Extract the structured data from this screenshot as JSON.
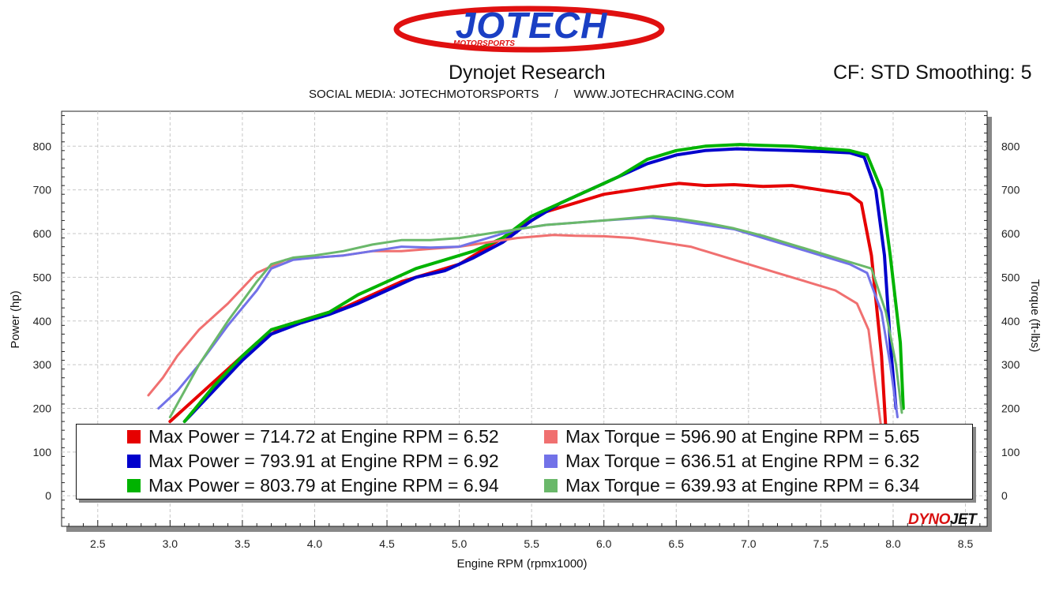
{
  "header": {
    "logo_text": "JOTECH",
    "logo_subtext": "MOTORSPORTS",
    "title": "Dynojet Research",
    "cf_text": "CF: STD Smoothing: 5",
    "social_label": "SOCIAL MEDIA: JOTECHMOTORSPORTS",
    "separator": "/",
    "website": "WWW.JOTECHRACING.COM"
  },
  "watermark": {
    "dyno": "DYNO",
    "jet": "JET"
  },
  "colors": {
    "power_red": "#e60000",
    "power_blue": "#0000cc",
    "power_green": "#00b300",
    "torque_red": "#f07070",
    "torque_blue": "#7272e8",
    "torque_green": "#6ab86a",
    "logo_red": "#e01010",
    "logo_blue": "#1a3fc4"
  },
  "chart_data": {
    "type": "line",
    "xlabel": "Engine RPM (rpmx1000)",
    "ylabel": "Power (hp)",
    "y2label": "Torque (ft-lbs)",
    "xlim": [
      2.25,
      8.65
    ],
    "ylim": [
      -70,
      880
    ],
    "x_ticks": [
      "2.5",
      "3.0",
      "3.5",
      "4.0",
      "4.5",
      "5.0",
      "5.5",
      "6.0",
      "6.5",
      "7.0",
      "7.5",
      "8.0",
      "8.5"
    ],
    "y_ticks": [
      "0",
      "100",
      "200",
      "300",
      "400",
      "500",
      "600",
      "700",
      "800"
    ],
    "y2_ticks": [
      "0",
      "100",
      "200",
      "300",
      "400",
      "500",
      "600",
      "700",
      "800"
    ],
    "grid": true,
    "legend_position": "bottom",
    "series": [
      {
        "color": "#e60000",
        "width": 4,
        "x": [
          3.0,
          3.2,
          3.4,
          3.6,
          3.8,
          4.0,
          4.2,
          4.4,
          4.6,
          4.8,
          5.0,
          5.2,
          5.4,
          5.6,
          5.8,
          6.0,
          6.2,
          6.4,
          6.52,
          6.7,
          6.9,
          7.1,
          7.3,
          7.5,
          7.7,
          7.78,
          7.85,
          7.92,
          7.95
        ],
        "values": [
          170,
          230,
          290,
          350,
          390,
          410,
          430,
          460,
          490,
          510,
          530,
          570,
          610,
          650,
          670,
          690,
          700,
          710,
          715,
          710,
          712,
          708,
          710,
          700,
          690,
          670,
          550,
          320,
          150
        ]
      },
      {
        "color": "#0000cc",
        "width": 4,
        "x": [
          3.1,
          3.3,
          3.5,
          3.7,
          3.9,
          4.1,
          4.3,
          4.5,
          4.7,
          4.9,
          5.1,
          5.3,
          5.5,
          5.7,
          5.9,
          6.1,
          6.3,
          6.5,
          6.7,
          6.92,
          7.1,
          7.3,
          7.5,
          7.7,
          7.8,
          7.88,
          7.94,
          7.98,
          8.02
        ],
        "values": [
          170,
          240,
          310,
          370,
          395,
          415,
          440,
          470,
          500,
          515,
          545,
          580,
          630,
          670,
          700,
          730,
          760,
          780,
          790,
          794,
          792,
          790,
          788,
          785,
          775,
          700,
          550,
          350,
          200
        ]
      },
      {
        "color": "#00b300",
        "width": 4,
        "x": [
          3.1,
          3.3,
          3.5,
          3.7,
          3.9,
          4.1,
          4.3,
          4.5,
          4.7,
          4.9,
          5.1,
          5.3,
          5.5,
          5.7,
          5.9,
          6.1,
          6.3,
          6.5,
          6.7,
          6.94,
          7.1,
          7.3,
          7.5,
          7.7,
          7.82,
          7.92,
          7.98,
          8.05,
          8.07
        ],
        "values": [
          170,
          250,
          320,
          380,
          400,
          420,
          460,
          490,
          520,
          540,
          560,
          590,
          640,
          670,
          700,
          730,
          770,
          790,
          800,
          804,
          802,
          800,
          795,
          790,
          780,
          700,
          550,
          350,
          200
        ]
      },
      {
        "color": "#f07070",
        "width": 3,
        "x": [
          2.85,
          2.95,
          3.05,
          3.2,
          3.4,
          3.6,
          3.8,
          4.0,
          4.2,
          4.4,
          4.6,
          4.8,
          5.0,
          5.2,
          5.4,
          5.65,
          5.8,
          6.0,
          6.2,
          6.4,
          6.6,
          6.8,
          7.0,
          7.2,
          7.4,
          7.6,
          7.75,
          7.83,
          7.88,
          7.92
        ],
        "values": [
          230,
          270,
          320,
          380,
          440,
          510,
          540,
          545,
          550,
          560,
          560,
          565,
          570,
          580,
          590,
          597,
          595,
          594,
          590,
          580,
          570,
          550,
          530,
          510,
          490,
          470,
          440,
          380,
          250,
          150
        ]
      },
      {
        "color": "#7272e8",
        "width": 3,
        "x": [
          2.92,
          3.05,
          3.2,
          3.4,
          3.6,
          3.7,
          3.85,
          4.0,
          4.2,
          4.4,
          4.6,
          4.8,
          5.0,
          5.2,
          5.4,
          5.6,
          5.8,
          6.0,
          6.32,
          6.5,
          6.7,
          6.9,
          7.1,
          7.3,
          7.5,
          7.7,
          7.82,
          7.92,
          7.98,
          8.03
        ],
        "values": [
          200,
          240,
          300,
          390,
          470,
          520,
          540,
          545,
          550,
          560,
          570,
          568,
          570,
          590,
          610,
          620,
          625,
          630,
          637,
          630,
          620,
          610,
          590,
          570,
          550,
          530,
          510,
          420,
          300,
          180
        ]
      },
      {
        "color": "#6ab86a",
        "width": 3,
        "x": [
          3.0,
          3.1,
          3.2,
          3.4,
          3.6,
          3.7,
          3.85,
          4.0,
          4.2,
          4.4,
          4.6,
          4.8,
          5.0,
          5.2,
          5.4,
          5.6,
          5.8,
          6.0,
          6.34,
          6.5,
          6.7,
          6.9,
          7.1,
          7.3,
          7.5,
          7.7,
          7.85,
          7.95,
          8.02,
          8.06
        ],
        "values": [
          180,
          240,
          300,
          400,
          490,
          530,
          545,
          550,
          560,
          575,
          585,
          585,
          590,
          600,
          610,
          620,
          625,
          630,
          640,
          635,
          625,
          612,
          595,
          575,
          555,
          535,
          520,
          420,
          300,
          190
        ]
      }
    ]
  },
  "legend": {
    "items": [
      {
        "label": "Max Power = 714.72 at Engine RPM = 6.52",
        "color": "#e60000"
      },
      {
        "label": "Max Power = 793.91 at Engine RPM = 6.92",
        "color": "#0000cc"
      },
      {
        "label": "Max Power = 803.79 at Engine RPM = 6.94",
        "color": "#00b300"
      },
      {
        "label": "Max Torque = 596.90 at Engine RPM = 5.65",
        "color": "#f07070"
      },
      {
        "label": "Max Torque = 636.51 at Engine RPM = 6.32",
        "color": "#7272e8"
      },
      {
        "label": "Max Torque = 639.93 at Engine RPM = 6.34",
        "color": "#6ab86a"
      }
    ]
  }
}
